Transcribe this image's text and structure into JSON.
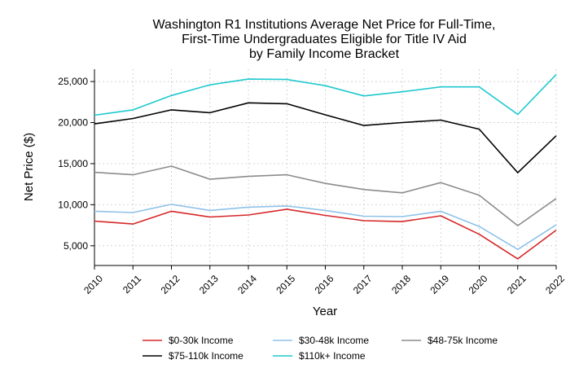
{
  "chart_data": {
    "type": "line",
    "title_lines": [
      "Washington R1 Institutions Average Net Price for Full-Time,",
      "First-Time Undergraduates Eligible for Title IV Aid",
      "by Family Income Bracket"
    ],
    "xlabel": "Year",
    "ylabel": "Net Price ($)",
    "x": [
      2010,
      2011,
      2012,
      2013,
      2014,
      2015,
      2016,
      2017,
      2018,
      2019,
      2020,
      2021,
      2022
    ],
    "x_tick_labels": [
      "2010",
      "2011",
      "2012",
      "2013",
      "2014",
      "2015",
      "2016",
      "2017",
      "2018",
      "2019",
      "2020",
      "2021",
      "2022"
    ],
    "y_ticks": [
      5000,
      10000,
      15000,
      20000,
      25000
    ],
    "y_tick_labels": [
      "5,000",
      "10,000",
      "15,000",
      "20,000",
      "25,000"
    ],
    "ylim": [
      2600,
      26500
    ],
    "grid": true,
    "legend_position": "bottom",
    "series": [
      {
        "name": "$0-30k Income",
        "color": "#d62728",
        "values": [
          8000,
          7650,
          9200,
          8500,
          8750,
          9450,
          8700,
          8050,
          7950,
          8650,
          6400,
          3400,
          6900
        ]
      },
      {
        "name": "$30-48k Income",
        "color": "#8fc2e8",
        "values": [
          9200,
          9050,
          10050,
          9300,
          9700,
          9850,
          9300,
          8600,
          8550,
          9200,
          7350,
          4550,
          7550
        ]
      },
      {
        "name": "$48-75k Income",
        "color": "#8c8c8c",
        "values": [
          13950,
          13650,
          14700,
          13100,
          13450,
          13650,
          12600,
          11850,
          11450,
          12700,
          11150,
          7450,
          10750
        ]
      },
      {
        "name": "$75-110k Income",
        "color": "#000000",
        "values": [
          19850,
          20500,
          21550,
          21200,
          22400,
          22300,
          20950,
          19650,
          20000,
          20300,
          19200,
          13900,
          18400
        ]
      },
      {
        "name": "$110k+ Income",
        "color": "#1fc9cf",
        "values": [
          20900,
          21550,
          23300,
          24600,
          25300,
          25250,
          24500,
          23250,
          23750,
          24350,
          24350,
          21000,
          25850
        ]
      }
    ]
  }
}
